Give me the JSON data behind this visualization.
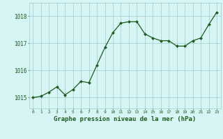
{
  "x": [
    0,
    1,
    2,
    3,
    4,
    5,
    6,
    7,
    8,
    9,
    10,
    11,
    12,
    13,
    14,
    15,
    16,
    17,
    18,
    19,
    20,
    21,
    22,
    23
  ],
  "y": [
    1015.0,
    1015.05,
    1015.2,
    1015.4,
    1015.1,
    1015.3,
    1015.6,
    1015.55,
    1016.2,
    1016.85,
    1017.4,
    1017.75,
    1017.8,
    1017.8,
    1017.35,
    1017.2,
    1017.1,
    1017.1,
    1016.9,
    1016.9,
    1017.1,
    1017.2,
    1017.7,
    1018.15
  ],
  "line_color": "#1a5c1a",
  "marker_color": "#1a5c1a",
  "bg_color": "#d8f5f5",
  "grid_color": "#a8d4d4",
  "tick_label_color": "#1a5c1a",
  "xlabel": "Graphe pression niveau de la mer (hPa)",
  "ylim": [
    1014.6,
    1018.5
  ],
  "yticks": [
    1015,
    1016,
    1017,
    1018
  ],
  "xticks": [
    0,
    1,
    2,
    3,
    4,
    5,
    6,
    7,
    8,
    9,
    10,
    11,
    12,
    13,
    14,
    15,
    16,
    17,
    18,
    19,
    20,
    21,
    22,
    23
  ]
}
